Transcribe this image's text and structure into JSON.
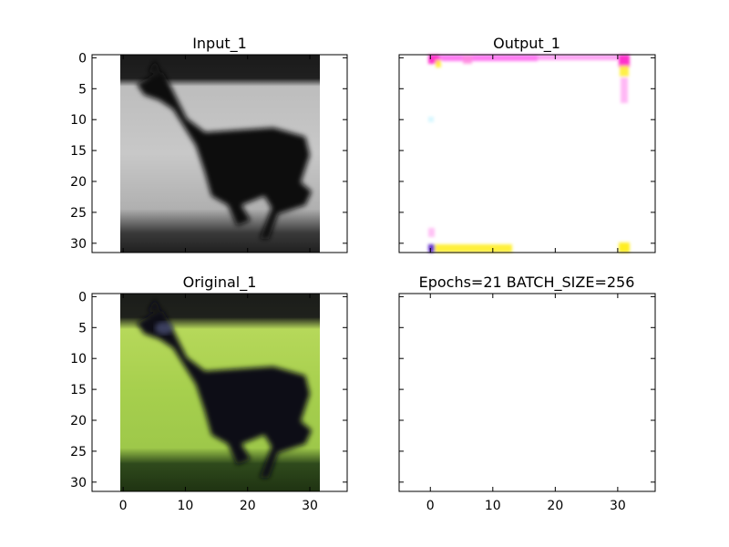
{
  "chart_data": [
    {
      "type": "image",
      "title": "Input_1",
      "xlim": [
        -5,
        36
      ],
      "ylim": [
        31.5,
        -0.5
      ],
      "xticks": [
        0,
        10,
        20,
        30
      ],
      "yticks": [
        0,
        5,
        10,
        15,
        20,
        25,
        30
      ],
      "show_xtick_labels": false,
      "show_ytick_labels": true,
      "image": {
        "width": 32,
        "height": 32,
        "colormap": "grayscale",
        "content": "black deer running to the right on a light grey field, dark band across the top and dark ground at the bottom"
      }
    },
    {
      "type": "image",
      "title": "Output_1",
      "xlim": [
        -5,
        36
      ],
      "ylim": [
        31.5,
        -0.5
      ],
      "xticks": [
        0,
        10,
        20,
        30
      ],
      "yticks": [
        0,
        5,
        10,
        15,
        20,
        25,
        30
      ],
      "show_xtick_labels": false,
      "show_ytick_labels": false,
      "image": {
        "width": 32,
        "height": 32,
        "colormap": "rgb",
        "content": "almost entirely white, magenta and yellow speckles along the top row and right edge, yellow along the bottom row"
      }
    },
    {
      "type": "image",
      "title": "Original_1",
      "xlim": [
        -5,
        36
      ],
      "ylim": [
        31.5,
        -0.5
      ],
      "xticks": [
        0,
        10,
        20,
        30
      ],
      "yticks": [
        0,
        5,
        10,
        15,
        20,
        25,
        30
      ],
      "show_xtick_labels": true,
      "show_ytick_labels": true,
      "image": {
        "width": 32,
        "height": 32,
        "colormap": "rgb",
        "content": "dark deer running to the right on green grass, dark band across the top and dark green shadow at the bottom"
      }
    },
    {
      "type": "empty",
      "title": "Epochs=21 BATCH_SIZE=256",
      "xlim": [
        -5,
        36
      ],
      "ylim": [
        31.5,
        -0.5
      ],
      "xticks": [
        0,
        10,
        20,
        30
      ],
      "yticks": [
        0,
        5,
        10,
        15,
        20,
        25,
        30
      ],
      "show_xtick_labels": true,
      "show_ytick_labels": false
    }
  ]
}
